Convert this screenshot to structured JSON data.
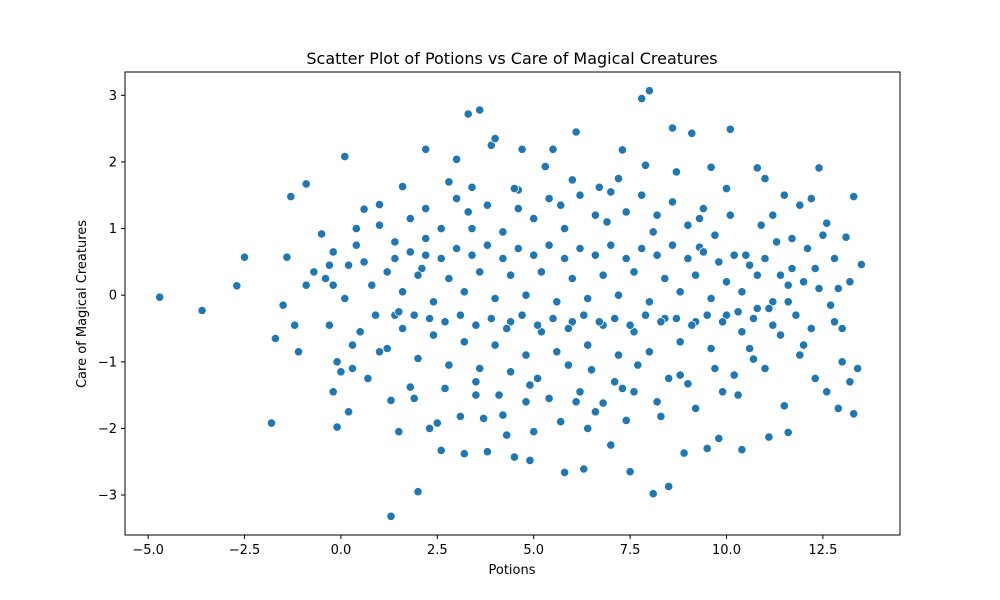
{
  "chart_data": {
    "type": "scatter",
    "title": "Scatter Plot of Potions vs Care of Magical Creatures",
    "xlabel": "Potions",
    "ylabel": "Care of Magical Creatures",
    "xlim": [
      -5.6,
      14.5
    ],
    "ylim": [
      -3.6,
      3.35
    ],
    "xticks": [
      -5.0,
      -2.5,
      0.0,
      2.5,
      5.0,
      7.5,
      10.0,
      12.5
    ],
    "xtick_labels": [
      "−5.0",
      "−2.5",
      "0.0",
      "2.5",
      "5.0",
      "7.5",
      "10.0",
      "12.5"
    ],
    "yticks": [
      -3,
      -2,
      -1,
      0,
      1,
      2,
      3
    ],
    "ytick_labels": [
      "−3",
      "−2",
      "−1",
      "0",
      "1",
      "2",
      "3"
    ],
    "grid": false,
    "marker_color": "#1f77b4",
    "marker_edge_color": "#ffffff",
    "points": [
      [
        -4.7,
        -0.03
      ],
      [
        -3.6,
        -0.23
      ],
      [
        -2.7,
        0.14
      ],
      [
        -2.5,
        0.57
      ],
      [
        -1.8,
        -1.92
      ],
      [
        -1.7,
        -0.65
      ],
      [
        -1.4,
        0.57
      ],
      [
        -1.3,
        1.48
      ],
      [
        -1.1,
        -0.85
      ],
      [
        -0.9,
        1.67
      ],
      [
        -0.7,
        0.35
      ],
      [
        -0.5,
        0.92
      ],
      [
        -0.3,
        -0.45
      ],
      [
        -0.2,
        -1.45
      ],
      [
        -0.1,
        -1.98
      ],
      [
        0.1,
        2.08
      ],
      [
        0.3,
        -0.75
      ],
      [
        0.6,
        1.29
      ],
      [
        1.0,
        -0.85
      ],
      [
        1.3,
        -3.32
      ],
      [
        1.4,
        -0.3
      ],
      [
        2.0,
        -2.95
      ],
      [
        2.1,
        0.4
      ],
      [
        2.2,
        2.19
      ],
      [
        2.6,
        -2.33
      ],
      [
        3.0,
        2.04
      ],
      [
        3.3,
        2.72
      ],
      [
        3.6,
        2.78
      ],
      [
        3.9,
        2.25
      ],
      [
        4.2,
        -1.8
      ],
      [
        4.5,
        -2.43
      ],
      [
        4.7,
        2.19
      ],
      [
        4.9,
        -2.48
      ],
      [
        5.5,
        2.19
      ],
      [
        5.8,
        -2.66
      ],
      [
        6.1,
        2.45
      ],
      [
        6.3,
        -2.61
      ],
      [
        6.6,
        -1.75
      ],
      [
        7.2,
        1.75
      ],
      [
        7.5,
        -2.65
      ],
      [
        7.8,
        2.95
      ],
      [
        8.0,
        3.07
      ],
      [
        8.1,
        -2.98
      ],
      [
        8.5,
        -2.87
      ],
      [
        8.6,
        2.51
      ],
      [
        8.9,
        -2.37
      ],
      [
        9.1,
        2.43
      ],
      [
        9.5,
        -2.3
      ],
      [
        9.8,
        -2.15
      ],
      [
        10.1,
        2.49
      ],
      [
        10.4,
        -2.32
      ],
      [
        10.8,
        1.91
      ],
      [
        11.1,
        -2.13
      ],
      [
        11.6,
        -2.06
      ],
      [
        12.0,
        -0.75
      ],
      [
        12.4,
        1.91
      ],
      [
        12.6,
        1.08
      ],
      [
        12.9,
        -1.7
      ],
      [
        13.1,
        0.87
      ],
      [
        13.3,
        1.48
      ],
      [
        13.5,
        0.45
      ],
      [
        13.5,
        0.46
      ],
      [
        13.4,
        -1.1
      ],
      [
        13.3,
        -1.78
      ],
      [
        13.2,
        -1.3
      ],
      [
        13.0,
        -0.5
      ],
      [
        12.8,
        0.55
      ],
      [
        12.3,
        0.4
      ],
      [
        11.9,
        1.35
      ],
      [
        11.5,
        -1.66
      ],
      [
        11.2,
        1.2
      ],
      [
        10.7,
        -0.96
      ],
      [
        10.3,
        -1.5
      ],
      [
        10.0,
        1.6
      ],
      [
        9.6,
        1.92
      ],
      [
        9.3,
        0.72
      ],
      [
        9.0,
        -1.33
      ],
      [
        8.7,
        1.85
      ],
      [
        8.3,
        -1.82
      ],
      [
        7.9,
        1.95
      ],
      [
        7.6,
        -1.45
      ],
      [
        7.3,
        2.18
      ],
      [
        7.0,
        -2.25
      ],
      [
        6.7,
        1.62
      ],
      [
        6.4,
        -2.0
      ],
      [
        6.0,
        1.73
      ],
      [
        5.7,
        -1.9
      ],
      [
        5.3,
        1.93
      ],
      [
        5.0,
        -2.05
      ],
      [
        4.6,
        1.58
      ],
      [
        4.3,
        -2.1
      ],
      [
        4.0,
        2.35
      ],
      [
        3.7,
        -1.85
      ],
      [
        3.4,
        1.62
      ],
      [
        3.1,
        -1.82
      ],
      [
        2.8,
        1.7
      ],
      [
        2.5,
        -1.92
      ],
      [
        2.2,
        1.3
      ],
      [
        1.9,
        -1.55
      ],
      [
        1.6,
        1.63
      ],
      [
        1.3,
        -1.58
      ],
      [
        1.0,
        1.36
      ],
      [
        0.7,
        -1.25
      ],
      [
        0.4,
        0.75
      ],
      [
        0.1,
        -0.05
      ],
      [
        -0.2,
        0.15
      ],
      [
        -0.4,
        0.25
      ],
      [
        -0.9,
        0.15
      ],
      [
        -1.2,
        -0.45
      ],
      [
        -1.5,
        -0.15
      ],
      [
        1.5,
        -2.05
      ],
      [
        1.8,
        -1.38
      ],
      [
        2.3,
        -2.0
      ],
      [
        2.7,
        -1.4
      ],
      [
        3.2,
        -2.38
      ],
      [
        3.5,
        -1.3
      ],
      [
        3.8,
        -2.35
      ],
      [
        4.1,
        -1.5
      ],
      [
        4.4,
        -1.15
      ],
      [
        4.8,
        -1.6
      ],
      [
        5.1,
        -1.25
      ],
      [
        5.4,
        -1.55
      ],
      [
        5.9,
        -1.05
      ],
      [
        6.2,
        -1.45
      ],
      [
        6.5,
        -1.12
      ],
      [
        6.8,
        -1.62
      ],
      [
        7.1,
        -1.3
      ],
      [
        7.4,
        -1.88
      ],
      [
        7.7,
        -1.05
      ],
      [
        8.2,
        -1.6
      ],
      [
        8.8,
        -1.2
      ],
      [
        9.2,
        -1.7
      ],
      [
        9.7,
        -1.1
      ],
      [
        10.2,
        -1.2
      ],
      [
        10.6,
        -0.8
      ],
      [
        11.0,
        -1.1
      ],
      [
        11.4,
        -0.6
      ],
      [
        11.8,
        -0.3
      ],
      [
        12.2,
        -0.5
      ],
      [
        12.7,
        -0.15
      ],
      [
        12.9,
        0.1
      ],
      [
        12.5,
        0.9
      ],
      [
        12.1,
        0.7
      ],
      [
        11.7,
        0.4
      ],
      [
        11.3,
        0.8
      ],
      [
        10.9,
        1.05
      ],
      [
        10.5,
        0.6
      ],
      [
        10.1,
        1.2
      ],
      [
        9.7,
        0.9
      ],
      [
        9.4,
        1.3
      ],
      [
        9.0,
        1.05
      ],
      [
        8.6,
        1.4
      ],
      [
        8.2,
        1.2
      ],
      [
        7.8,
        1.5
      ],
      [
        7.4,
        1.25
      ],
      [
        7.0,
        1.55
      ],
      [
        6.6,
        1.2
      ],
      [
        6.2,
        1.5
      ],
      [
        5.8,
        1.0
      ],
      [
        5.4,
        1.45
      ],
      [
        5.0,
        1.15
      ],
      [
        4.6,
        1.3
      ],
      [
        4.2,
        0.95
      ],
      [
        3.8,
        1.35
      ],
      [
        3.4,
        1.0
      ],
      [
        3.0,
        1.45
      ],
      [
        2.6,
        1.0
      ],
      [
        2.2,
        0.85
      ],
      [
        1.8,
        1.15
      ],
      [
        1.4,
        0.8
      ],
      [
        1.0,
        1.05
      ],
      [
        0.6,
        0.5
      ],
      [
        0.2,
        0.45
      ],
      [
        -0.2,
        0.65
      ],
      [
        0.5,
        -0.55
      ],
      [
        0.9,
        -0.3
      ],
      [
        1.2,
        -0.8
      ],
      [
        1.6,
        -0.5
      ],
      [
        2.0,
        -0.95
      ],
      [
        2.4,
        -0.6
      ],
      [
        2.8,
        -1.05
      ],
      [
        3.2,
        -0.7
      ],
      [
        3.6,
        -1.1
      ],
      [
        4.0,
        -0.75
      ],
      [
        4.4,
        -0.4
      ],
      [
        4.8,
        -0.9
      ],
      [
        5.2,
        -0.55
      ],
      [
        5.6,
        -0.85
      ],
      [
        6.0,
        -0.4
      ],
      [
        6.4,
        -0.75
      ],
      [
        6.8,
        -0.45
      ],
      [
        7.2,
        -0.9
      ],
      [
        7.6,
        -0.55
      ],
      [
        8.0,
        -0.85
      ],
      [
        8.4,
        -0.35
      ],
      [
        8.8,
        -0.7
      ],
      [
        9.2,
        -0.4
      ],
      [
        9.6,
        -0.8
      ],
      [
        10.0,
        -0.3
      ],
      [
        10.4,
        -0.55
      ],
      [
        10.8,
        -0.2
      ],
      [
        11.2,
        -0.45
      ],
      [
        11.6,
        -0.1
      ],
      [
        12.0,
        0.2
      ],
      [
        0.8,
        0.15
      ],
      [
        1.2,
        0.35
      ],
      [
        1.6,
        0.05
      ],
      [
        2.0,
        0.3
      ],
      [
        2.4,
        -0.1
      ],
      [
        2.8,
        0.25
      ],
      [
        3.2,
        0.05
      ],
      [
        3.6,
        0.35
      ],
      [
        4.0,
        -0.05
      ],
      [
        4.4,
        0.3
      ],
      [
        4.8,
        0.0
      ],
      [
        5.2,
        0.35
      ],
      [
        5.6,
        -0.1
      ],
      [
        6.0,
        0.25
      ],
      [
        6.4,
        -0.05
      ],
      [
        6.8,
        0.3
      ],
      [
        7.2,
        0.0
      ],
      [
        7.6,
        0.35
      ],
      [
        8.0,
        -0.1
      ],
      [
        8.4,
        0.25
      ],
      [
        8.8,
        0.05
      ],
      [
        9.2,
        0.3
      ],
      [
        9.6,
        -0.05
      ],
      [
        10.0,
        0.2
      ],
      [
        10.4,
        0.05
      ],
      [
        10.8,
        0.3
      ],
      [
        11.2,
        -0.1
      ],
      [
        11.6,
        0.15
      ],
      [
        1.4,
        0.55
      ],
      [
        1.8,
        0.65
      ],
      [
        2.2,
        0.6
      ],
      [
        2.6,
        0.55
      ],
      [
        3.0,
        0.7
      ],
      [
        3.4,
        0.6
      ],
      [
        3.8,
        0.75
      ],
      [
        4.2,
        0.55
      ],
      [
        4.6,
        0.7
      ],
      [
        5.0,
        0.6
      ],
      [
        5.4,
        0.75
      ],
      [
        5.8,
        0.55
      ],
      [
        6.2,
        0.7
      ],
      [
        6.6,
        0.6
      ],
      [
        7.0,
        0.75
      ],
      [
        7.4,
        0.55
      ],
      [
        7.8,
        0.7
      ],
      [
        8.2,
        0.6
      ],
      [
        8.6,
        0.75
      ],
      [
        9.0,
        0.55
      ],
      [
        9.4,
        0.65
      ],
      [
        9.8,
        0.5
      ],
      [
        10.2,
        0.6
      ],
      [
        10.6,
        0.45
      ],
      [
        11.0,
        0.55
      ],
      [
        11.4,
        0.3
      ],
      [
        1.5,
        -0.25
      ],
      [
        1.9,
        -0.3
      ],
      [
        2.3,
        -0.35
      ],
      [
        2.7,
        -0.4
      ],
      [
        3.1,
        -0.3
      ],
      [
        3.5,
        -0.45
      ],
      [
        3.9,
        -0.35
      ],
      [
        4.3,
        -0.5
      ],
      [
        4.7,
        -0.3
      ],
      [
        5.1,
        -0.45
      ],
      [
        5.5,
        -0.35
      ],
      [
        5.9,
        -0.5
      ],
      [
        6.3,
        -0.3
      ],
      [
        6.7,
        -0.4
      ],
      [
        7.1,
        -0.35
      ],
      [
        7.5,
        -0.45
      ],
      [
        7.9,
        -0.3
      ],
      [
        8.3,
        -0.4
      ],
      [
        8.7,
        -0.35
      ],
      [
        9.1,
        -0.45
      ],
      [
        9.5,
        -0.3
      ],
      [
        9.9,
        -0.4
      ],
      [
        10.3,
        -0.25
      ],
      [
        10.7,
        -0.35
      ],
      [
        11.1,
        -0.2
      ],
      [
        3.3,
        1.25
      ],
      [
        4.5,
        1.6
      ],
      [
        5.7,
        1.35
      ],
      [
        6.9,
        1.1
      ],
      [
        8.1,
        0.95
      ],
      [
        9.3,
        1.15
      ],
      [
        3.5,
        -1.5
      ],
      [
        4.9,
        -1.35
      ],
      [
        6.1,
        -1.6
      ],
      [
        7.3,
        -1.4
      ],
      [
        8.5,
        -1.25
      ],
      [
        9.9,
        -1.45
      ],
      [
        0.3,
        -1.1
      ],
      [
        0.0,
        -1.15
      ],
      [
        0.2,
        -1.75
      ],
      [
        -0.1,
        -1.0
      ],
      [
        0.4,
        1.0
      ],
      [
        -0.3,
        0.45
      ],
      [
        12.3,
        -1.25
      ],
      [
        12.6,
        -1.45
      ],
      [
        13.0,
        -1.0
      ],
      [
        12.8,
        -0.4
      ],
      [
        13.2,
        0.2
      ],
      [
        12.4,
        0.1
      ],
      [
        11.9,
        -0.9
      ],
      [
        11.7,
        0.85
      ],
      [
        12.2,
        1.45
      ],
      [
        11.5,
        1.5
      ],
      [
        11.0,
        1.75
      ]
    ]
  }
}
